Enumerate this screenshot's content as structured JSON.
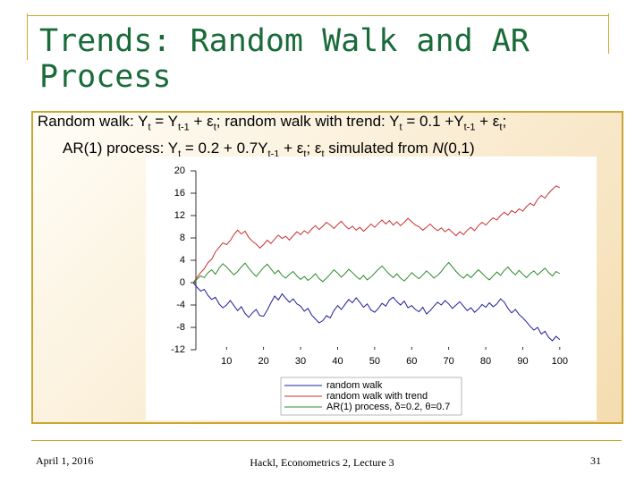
{
  "slide": {
    "title": "Trends: Random Walk and AR Process",
    "text_lines": [
      [
        "Random walk: Y",
        {
          "sub": "t"
        },
        " = Y",
        {
          "sub": "t-1"
        },
        " + ε",
        {
          "sub": "t"
        },
        "; random walk with trend: Y",
        {
          "sub": "t"
        },
        " = 0.1 +Y",
        {
          "sub": "t-1"
        },
        " + ε",
        {
          "sub": "t"
        },
        ";"
      ],
      [
        "AR(1) process: Y",
        {
          "sub": "t"
        },
        " = 0.2 + 0.7Y",
        {
          "sub": "t-1"
        },
        " + ε",
        {
          "sub": "t"
        },
        "; ε",
        {
          "sub": "t"
        },
        " simulated from ",
        {
          "i": "N"
        },
        "(0,1)"
      ]
    ],
    "footer_left": "April 1, 2016",
    "footer_center": "Hackl, Econometrics 2, Lecture 3",
    "footer_right": "31"
  },
  "chart_data": {
    "type": "line",
    "x": [
      1,
      2,
      3,
      4,
      5,
      6,
      7,
      8,
      9,
      10,
      11,
      12,
      13,
      14,
      15,
      16,
      17,
      18,
      19,
      20,
      21,
      22,
      23,
      24,
      25,
      26,
      27,
      28,
      29,
      30,
      31,
      32,
      33,
      34,
      35,
      36,
      37,
      38,
      39,
      40,
      41,
      42,
      43,
      44,
      45,
      46,
      47,
      48,
      49,
      50,
      51,
      52,
      53,
      54,
      55,
      56,
      57,
      58,
      59,
      60,
      61,
      62,
      63,
      64,
      65,
      66,
      67,
      68,
      69,
      70,
      71,
      72,
      73,
      74,
      75,
      76,
      77,
      78,
      79,
      80,
      81,
      82,
      83,
      84,
      85,
      86,
      87,
      88,
      89,
      90,
      91,
      92,
      93,
      94,
      95,
      96,
      97,
      98,
      99,
      100
    ],
    "series": [
      {
        "name": "random walk",
        "color": "#1f1f9a",
        "values": [
          0,
          -0.8,
          -1.5,
          -1.2,
          -2.3,
          -3.0,
          -2.6,
          -3.8,
          -4.5,
          -4.0,
          -3.2,
          -4.1,
          -5.0,
          -4.3,
          -5.5,
          -6.2,
          -5.4,
          -4.8,
          -5.9,
          -6.0,
          -4.9,
          -3.6,
          -2.4,
          -3.1,
          -2.0,
          -2.8,
          -3.5,
          -2.9,
          -3.8,
          -4.2,
          -5.1,
          -4.6,
          -5.8,
          -6.5,
          -7.2,
          -6.8,
          -5.9,
          -6.3,
          -5.0,
          -4.1,
          -4.8,
          -3.9,
          -3.0,
          -3.6,
          -2.7,
          -3.5,
          -4.4,
          -3.8,
          -4.9,
          -5.3,
          -4.6,
          -3.7,
          -4.2,
          -3.1,
          -2.6,
          -3.4,
          -4.0,
          -3.3,
          -4.5,
          -4.1,
          -4.8,
          -5.2,
          -4.4,
          -5.6,
          -5.0,
          -4.2,
          -3.5,
          -4.0,
          -3.2,
          -3.8,
          -4.6,
          -4.0,
          -3.4,
          -4.2,
          -5.0,
          -4.5,
          -5.3,
          -4.7,
          -3.9,
          -4.4,
          -3.6,
          -4.3,
          -3.8,
          -2.9,
          -3.5,
          -4.6,
          -5.4,
          -4.8,
          -5.7,
          -6.3,
          -7.0,
          -7.8,
          -8.5,
          -8.0,
          -9.2,
          -8.7,
          -9.8,
          -10.4,
          -9.6,
          -10.2
        ]
      },
      {
        "name": "random walk with trend",
        "color": "#c83232",
        "values": [
          0,
          0.9,
          1.8,
          2.5,
          3.6,
          4.2,
          5.5,
          6.3,
          7.1,
          6.8,
          7.5,
          8.6,
          9.4,
          8.7,
          9.2,
          8.1,
          7.4,
          6.9,
          6.2,
          6.8,
          7.6,
          7.0,
          7.8,
          8.5,
          7.9,
          8.3,
          7.6,
          8.4,
          9.1,
          8.6,
          9.3,
          8.8,
          9.6,
          10.2,
          9.5,
          10.1,
          10.8,
          10.3,
          9.7,
          10.4,
          11.0,
          10.2,
          9.6,
          10.1,
          9.4,
          9.9,
          9.2,
          9.8,
          10.5,
          9.9,
          10.6,
          11.2,
          10.5,
          11.1,
          10.3,
          10.9,
          10.2,
          10.8,
          11.5,
          10.9,
          10.3,
          10.0,
          9.4,
          9.9,
          10.5,
          9.8,
          9.3,
          9.8,
          9.1,
          9.6,
          9.0,
          8.4,
          9.1,
          8.6,
          9.4,
          9.9,
          9.3,
          10.2,
          10.8,
          10.3,
          11.0,
          11.6,
          11.2,
          12.0,
          12.6,
          12.1,
          12.9,
          12.5,
          13.2,
          12.8,
          13.6,
          14.2,
          13.8,
          14.9,
          15.6,
          15.1,
          16.0,
          16.7,
          17.3,
          17.0
        ]
      },
      {
        "name": "AR(1) process, δ=0.2, θ=0.7",
        "color": "#2e8b2e",
        "values": [
          0,
          0.6,
          1.2,
          0.9,
          1.8,
          2.3,
          1.5,
          2.6,
          3.4,
          2.8,
          2.1,
          1.4,
          2.0,
          2.8,
          3.5,
          2.6,
          1.8,
          1.1,
          1.9,
          2.7,
          3.3,
          2.5,
          1.6,
          2.2,
          1.3,
          0.8,
          1.5,
          2.0,
          1.2,
          0.6,
          1.1,
          0.4,
          0.9,
          1.6,
          0.7,
          0.2,
          0.8,
          1.5,
          2.3,
          1.7,
          1.0,
          1.6,
          2.4,
          1.8,
          1.1,
          0.6,
          1.3,
          0.5,
          1.0,
          1.7,
          2.4,
          3.0,
          2.2,
          1.5,
          0.9,
          1.6,
          0.8,
          0.3,
          1.0,
          1.8,
          1.2,
          0.7,
          1.4,
          2.1,
          1.5,
          0.8,
          1.3,
          2.0,
          2.9,
          3.6,
          2.8,
          2.0,
          1.3,
          0.8,
          1.5,
          0.9,
          1.6,
          2.3,
          1.7,
          1.0,
          0.5,
          1.2,
          1.9,
          1.3,
          2.2,
          2.8,
          2.0,
          1.4,
          2.2,
          1.5,
          0.9,
          1.6,
          2.1,
          1.4,
          2.0,
          2.6,
          1.8,
          1.2,
          2.0,
          1.6
        ]
      }
    ],
    "xlim": [
      1,
      101
    ],
    "xticks": [
      10,
      20,
      30,
      40,
      50,
      60,
      70,
      80,
      90,
      100
    ],
    "ylim": [
      -12,
      20
    ],
    "yticks": [
      -12,
      -8,
      -4,
      0,
      4,
      8,
      12,
      16,
      20
    ],
    "grid": false,
    "legend": "bottom"
  }
}
